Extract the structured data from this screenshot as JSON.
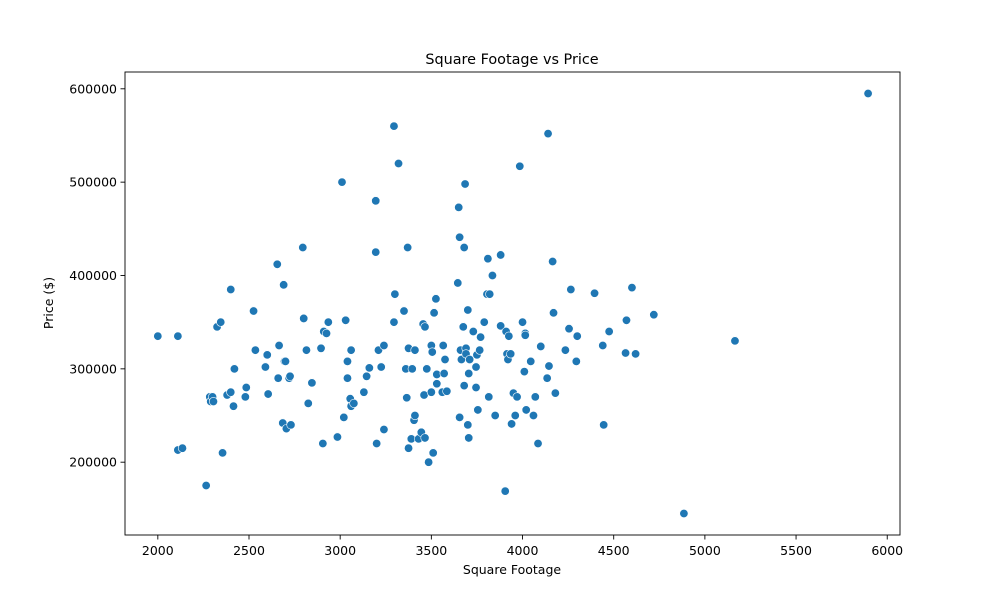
{
  "chart_data": {
    "type": "scatter",
    "title": "Square Footage vs Price",
    "xlabel": "Square Footage",
    "ylabel": "Price ($)",
    "xlim": [
      1820,
      6070
    ],
    "ylim": [
      122000,
      618000
    ],
    "xticks": [
      2000,
      2500,
      3000,
      3500,
      4000,
      4500,
      5000,
      5500,
      6000
    ],
    "yticks": [
      200000,
      300000,
      400000,
      500000,
      600000
    ],
    "grid": false,
    "legend": "none",
    "marker_color": "#1f77b4",
    "points": [
      [
        2000,
        335000
      ],
      [
        2110,
        335000
      ],
      [
        2110,
        213000
      ],
      [
        2135,
        215000
      ],
      [
        2265,
        175000
      ],
      [
        2285,
        270000
      ],
      [
        2290,
        265000
      ],
      [
        2300,
        270000
      ],
      [
        2305,
        265000
      ],
      [
        2325,
        345000
      ],
      [
        2345,
        350000
      ],
      [
        2355,
        210000
      ],
      [
        2380,
        272000
      ],
      [
        2400,
        385000
      ],
      [
        2400,
        275000
      ],
      [
        2415,
        260000
      ],
      [
        2420,
        300000
      ],
      [
        2480,
        270000
      ],
      [
        2485,
        280000
      ],
      [
        2525,
        362000
      ],
      [
        2535,
        320000
      ],
      [
        2590,
        302000
      ],
      [
        2600,
        315000
      ],
      [
        2605,
        273000
      ],
      [
        2655,
        412000
      ],
      [
        2660,
        290000
      ],
      [
        2665,
        325000
      ],
      [
        2685,
        242000
      ],
      [
        2690,
        390000
      ],
      [
        2695,
        308000
      ],
      [
        2700,
        308000
      ],
      [
        2705,
        236000
      ],
      [
        2720,
        290000
      ],
      [
        2725,
        292000
      ],
      [
        2730,
        240000
      ],
      [
        2795,
        430000
      ],
      [
        2800,
        354000
      ],
      [
        2815,
        320000
      ],
      [
        2825,
        263000
      ],
      [
        2845,
        285000
      ],
      [
        2895,
        322000
      ],
      [
        2905,
        220000
      ],
      [
        2910,
        340000
      ],
      [
        2925,
        338000
      ],
      [
        2935,
        350000
      ],
      [
        2985,
        227000
      ],
      [
        3010,
        500000
      ],
      [
        3020,
        248000
      ],
      [
        3030,
        352000
      ],
      [
        3040,
        290000
      ],
      [
        3040,
        308000
      ],
      [
        3055,
        268000
      ],
      [
        3060,
        320000
      ],
      [
        3060,
        260000
      ],
      [
        3075,
        263000
      ],
      [
        3130,
        275000
      ],
      [
        3145,
        292000
      ],
      [
        3160,
        301000
      ],
      [
        3195,
        480000
      ],
      [
        3195,
        425000
      ],
      [
        3200,
        220000
      ],
      [
        3210,
        320000
      ],
      [
        3225,
        302000
      ],
      [
        3240,
        325000
      ],
      [
        3240,
        235000
      ],
      [
        3295,
        560000
      ],
      [
        3295,
        350000
      ],
      [
        3300,
        380000
      ],
      [
        3320,
        520000
      ],
      [
        3350,
        362000
      ],
      [
        3360,
        300000
      ],
      [
        3365,
        269000
      ],
      [
        3370,
        430000
      ],
      [
        3375,
        322000
      ],
      [
        3375,
        215000
      ],
      [
        3390,
        225000
      ],
      [
        3395,
        300000
      ],
      [
        3405,
        245000
      ],
      [
        3410,
        320000
      ],
      [
        3410,
        250000
      ],
      [
        3430,
        225000
      ],
      [
        3445,
        232000
      ],
      [
        3455,
        348000
      ],
      [
        3460,
        272000
      ],
      [
        3465,
        345000
      ],
      [
        3465,
        226000
      ],
      [
        3475,
        300000
      ],
      [
        3485,
        200000
      ],
      [
        3500,
        325000
      ],
      [
        3500,
        275000
      ],
      [
        3505,
        318000
      ],
      [
        3510,
        210000
      ],
      [
        3515,
        360000
      ],
      [
        3525,
        375000
      ],
      [
        3530,
        294000
      ],
      [
        3530,
        284000
      ],
      [
        3560,
        275000
      ],
      [
        3565,
        325000
      ],
      [
        3570,
        295000
      ],
      [
        3575,
        310000
      ],
      [
        3585,
        276000
      ],
      [
        3645,
        392000
      ],
      [
        3650,
        473000
      ],
      [
        3655,
        441000
      ],
      [
        3655,
        248000
      ],
      [
        3660,
        320000
      ],
      [
        3665,
        310000
      ],
      [
        3675,
        345000
      ],
      [
        3680,
        430000
      ],
      [
        3680,
        282000
      ],
      [
        3685,
        498000
      ],
      [
        3690,
        322000
      ],
      [
        3690,
        316000
      ],
      [
        3700,
        363000
      ],
      [
        3700,
        240000
      ],
      [
        3705,
        295000
      ],
      [
        3705,
        226000
      ],
      [
        3710,
        310000
      ],
      [
        3730,
        340000
      ],
      [
        3745,
        302000
      ],
      [
        3745,
        280000
      ],
      [
        3750,
        315000
      ],
      [
        3755,
        256000
      ],
      [
        3765,
        320000
      ],
      [
        3770,
        334000
      ],
      [
        3790,
        350000
      ],
      [
        3805,
        380000
      ],
      [
        3810,
        418000
      ],
      [
        3815,
        270000
      ],
      [
        3820,
        380000
      ],
      [
        3835,
        400000
      ],
      [
        3850,
        250000
      ],
      [
        3880,
        422000
      ],
      [
        3880,
        346000
      ],
      [
        3905,
        169000
      ],
      [
        3910,
        340000
      ],
      [
        3915,
        316000
      ],
      [
        3920,
        310000
      ],
      [
        3925,
        335000
      ],
      [
        3935,
        316000
      ],
      [
        3940,
        241000
      ],
      [
        3950,
        274000
      ],
      [
        3960,
        250000
      ],
      [
        3970,
        270000
      ],
      [
        3985,
        517000
      ],
      [
        4000,
        350000
      ],
      [
        4010,
        297000
      ],
      [
        4015,
        338000
      ],
      [
        4015,
        336000
      ],
      [
        4020,
        256000
      ],
      [
        4045,
        308000
      ],
      [
        4060,
        250000
      ],
      [
        4070,
        270000
      ],
      [
        4085,
        220000
      ],
      [
        4100,
        324000
      ],
      [
        4135,
        290000
      ],
      [
        4140,
        552000
      ],
      [
        4145,
        303000
      ],
      [
        4165,
        415000
      ],
      [
        4170,
        360000
      ],
      [
        4180,
        274000
      ],
      [
        4235,
        320000
      ],
      [
        4255,
        343000
      ],
      [
        4265,
        385000
      ],
      [
        4295,
        308000
      ],
      [
        4300,
        335000
      ],
      [
        4395,
        381000
      ],
      [
        4440,
        325000
      ],
      [
        4445,
        240000
      ],
      [
        4475,
        340000
      ],
      [
        4565,
        317000
      ],
      [
        4570,
        352000
      ],
      [
        4600,
        387000
      ],
      [
        4620,
        316000
      ],
      [
        4720,
        358000
      ],
      [
        4885,
        145000
      ],
      [
        5165,
        330000
      ],
      [
        5895,
        595000
      ]
    ]
  }
}
